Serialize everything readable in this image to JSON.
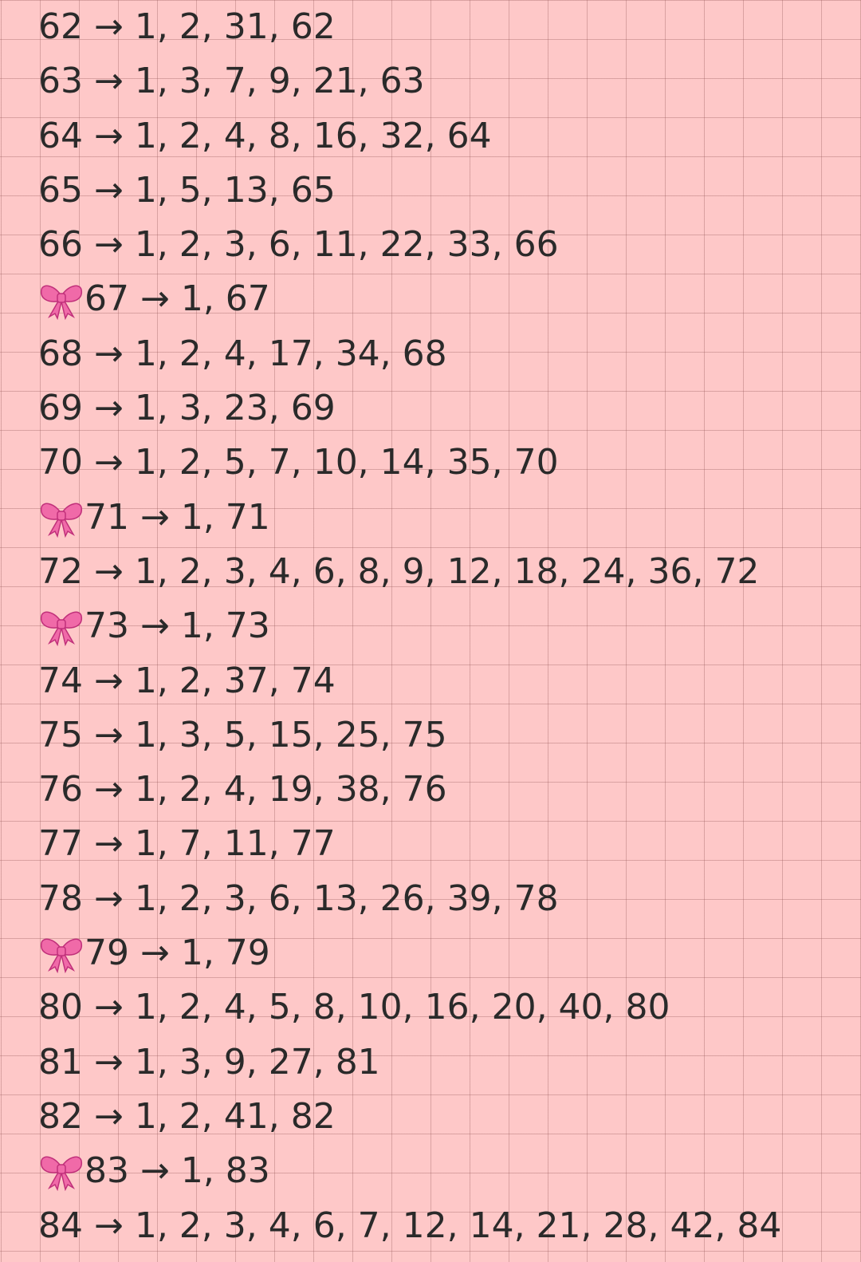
{
  "colors": {
    "background": "#fec8c8",
    "text": "#2a2a2a",
    "bow": "#f06aa8"
  },
  "lines": [
    {
      "prime": false,
      "text": "62 → 1, 2, 31, 62"
    },
    {
      "prime": false,
      "text": "63 → 1, 3, 7, 9, 21, 63"
    },
    {
      "prime": false,
      "text": "64 → 1, 2, 4, 8, 16, 32, 64"
    },
    {
      "prime": false,
      "text": "65 → 1, 5, 13, 65"
    },
    {
      "prime": false,
      "text": "66 → 1, 2, 3, 6, 11, 22, 33, 66"
    },
    {
      "prime": true,
      "text": "67 → 1, 67"
    },
    {
      "prime": false,
      "text": "68 → 1, 2, 4, 17, 34, 68"
    },
    {
      "prime": false,
      "text": "69 → 1, 3, 23, 69"
    },
    {
      "prime": false,
      "text": "70 → 1, 2, 5, 7, 10, 14, 35, 70"
    },
    {
      "prime": true,
      "text": "71 → 1, 71"
    },
    {
      "prime": false,
      "text": "72 → 1, 2, 3, 4, 6, 8, 9, 12, 18, 24, 36, 72"
    },
    {
      "prime": true,
      "text": "73 → 1, 73"
    },
    {
      "prime": false,
      "text": "74 → 1, 2, 37, 74"
    },
    {
      "prime": false,
      "text": "75 → 1, 3, 5, 15, 25, 75"
    },
    {
      "prime": false,
      "text": "76 → 1, 2, 4, 19, 38, 76"
    },
    {
      "prime": false,
      "text": "77 → 1, 7, 11, 77"
    },
    {
      "prime": false,
      "text": "78 → 1, 2, 3, 6, 13, 26, 39, 78"
    },
    {
      "prime": true,
      "text": "79 → 1, 79"
    },
    {
      "prime": false,
      "text": "80 → 1, 2, 4, 5, 8, 10, 16, 20, 40, 80"
    },
    {
      "prime": false,
      "text": "81 → 1, 3, 9, 27, 81"
    },
    {
      "prime": false,
      "text": "82 → 1, 2, 41, 82"
    },
    {
      "prime": true,
      "text": "83 → 1, 83"
    },
    {
      "prime": false,
      "text": "84 → 1, 2, 3, 4, 6, 7, 12, 14, 21, 28, 42, 84"
    }
  ]
}
